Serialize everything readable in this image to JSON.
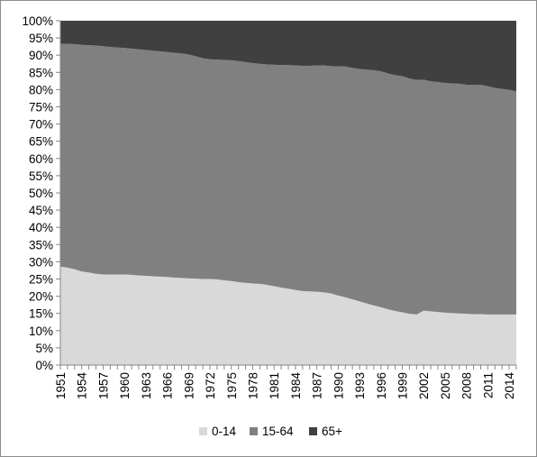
{
  "chart_data": {
    "type": "area",
    "stacked": "percent",
    "title": "",
    "xlabel": "",
    "ylabel": "",
    "ylim": [
      0,
      100
    ],
    "y_ticks": [
      "0%",
      "5%",
      "10%",
      "15%",
      "20%",
      "25%",
      "30%",
      "35%",
      "40%",
      "45%",
      "50%",
      "55%",
      "60%",
      "65%",
      "70%",
      "75%",
      "80%",
      "85%",
      "90%",
      "95%",
      "100%"
    ],
    "x_tick_labels": [
      "1951",
      "1954",
      "1957",
      "1960",
      "1963",
      "1966",
      "1969",
      "1972",
      "1975",
      "1978",
      "1981",
      "1984",
      "1987",
      "1990",
      "1993",
      "1996",
      "1999",
      "2002",
      "2005",
      "2008",
      "2011",
      "2014"
    ],
    "grid": false,
    "legend_position": "bottom",
    "colors": {
      "0-14": "#d9d9d9",
      "15-64": "#808080",
      "65+": "#404040"
    },
    "x": [
      1951,
      1952,
      1953,
      1954,
      1955,
      1956,
      1957,
      1958,
      1959,
      1960,
      1961,
      1962,
      1963,
      1964,
      1965,
      1966,
      1967,
      1968,
      1969,
      1970,
      1971,
      1972,
      1973,
      1974,
      1975,
      1976,
      1977,
      1978,
      1979,
      1980,
      1981,
      1982,
      1983,
      1984,
      1985,
      1986,
      1987,
      1988,
      1989,
      1990,
      1991,
      1992,
      1993,
      1994,
      1995,
      1996,
      1997,
      1998,
      1999,
      2000,
      2001,
      2002,
      2003,
      2004,
      2005,
      2006,
      2007,
      2008,
      2009,
      2010,
      2011,
      2012,
      2013,
      2014,
      2015
    ],
    "series": [
      {
        "name": "0-14",
        "values": [
          28.6,
          28.3,
          27.8,
          27.2,
          26.9,
          26.5,
          26.3,
          26.3,
          26.3,
          26.3,
          26.2,
          26.0,
          25.9,
          25.8,
          25.7,
          25.6,
          25.4,
          25.3,
          25.2,
          25.1,
          25.0,
          25.0,
          24.9,
          24.6,
          24.4,
          24.1,
          23.9,
          23.7,
          23.6,
          23.3,
          22.9,
          22.5,
          22.2,
          21.8,
          21.5,
          21.4,
          21.3,
          21.1,
          20.8,
          20.2,
          19.7,
          19.1,
          18.5,
          17.9,
          17.3,
          16.8,
          16.2,
          15.7,
          15.3,
          14.9,
          14.7,
          15.8,
          15.6,
          15.4,
          15.2,
          15.1,
          15.0,
          14.9,
          14.8,
          14.8,
          14.7,
          14.7,
          14.7,
          14.7,
          14.7
        ]
      },
      {
        "name": "15-64",
        "values": [
          64.7,
          65.0,
          65.4,
          65.8,
          66.0,
          66.3,
          66.3,
          66.1,
          65.9,
          65.8,
          65.7,
          65.7,
          65.6,
          65.5,
          65.4,
          65.3,
          65.3,
          65.2,
          65.0,
          64.6,
          64.1,
          63.8,
          63.8,
          64.0,
          64.1,
          64.2,
          64.1,
          64.0,
          63.9,
          64.0,
          64.3,
          64.6,
          64.9,
          65.2,
          65.4,
          65.5,
          65.7,
          65.9,
          66.0,
          66.5,
          67.0,
          67.2,
          67.5,
          67.9,
          68.3,
          68.5,
          68.5,
          68.5,
          68.6,
          68.3,
          68.1,
          67.1,
          66.8,
          66.8,
          66.7,
          66.7,
          66.7,
          66.5,
          66.6,
          66.6,
          66.3,
          65.8,
          65.5,
          65.2,
          64.8
        ]
      },
      {
        "name": "65+",
        "values": [
          6.7,
          6.7,
          6.8,
          7.0,
          7.1,
          7.2,
          7.4,
          7.6,
          7.8,
          7.9,
          8.1,
          8.3,
          8.5,
          8.7,
          8.9,
          9.1,
          9.3,
          9.5,
          9.8,
          10.3,
          10.9,
          11.2,
          11.3,
          11.4,
          11.5,
          11.7,
          12.0,
          12.3,
          12.5,
          12.7,
          12.8,
          12.9,
          12.9,
          13.0,
          13.1,
          13.1,
          13.0,
          13.0,
          13.2,
          13.3,
          13.3,
          13.7,
          14.0,
          14.2,
          14.4,
          14.7,
          15.3,
          15.8,
          16.1,
          16.8,
          17.2,
          17.1,
          17.6,
          17.8,
          18.1,
          18.2,
          18.3,
          18.6,
          18.6,
          18.6,
          19.0,
          19.5,
          19.8,
          20.1,
          20.5
        ]
      }
    ]
  }
}
